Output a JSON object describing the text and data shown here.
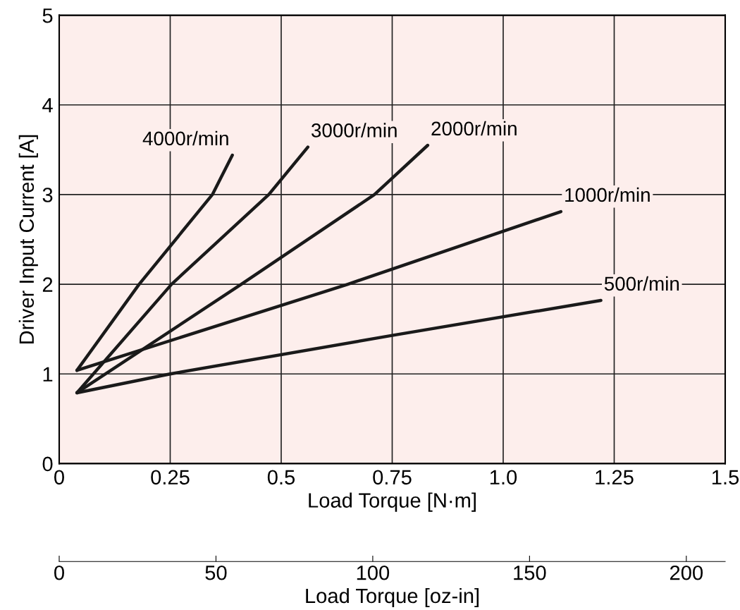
{
  "chart_data": {
    "type": "line",
    "xlabel": "Load Torque [N·m]",
    "ylabel": "Driver Input Current [A]",
    "x2label": "Load Torque [oz-in]",
    "xlim": [
      0,
      1.5
    ],
    "xticks": [
      0,
      0.25,
      0.5,
      0.75,
      {
        "value": 1.0,
        "label": "1.0"
      },
      1.25,
      1.5
    ],
    "ylim": [
      0,
      5
    ],
    "yticks": [
      0,
      1,
      2,
      3,
      4,
      5
    ],
    "x2lim": [
      0,
      212.4
    ],
    "x2ticks": [
      0,
      50,
      100,
      150,
      200
    ],
    "grid": true,
    "legend": false,
    "marker": "none",
    "line_style": "solid",
    "series": [
      {
        "name": "4000r/min",
        "color": "#1a1a1a",
        "x": [
          0.04,
          0.18,
          0.345,
          0.39
        ],
        "values": [
          1.04,
          2,
          3,
          3.44
        ]
      },
      {
        "name": "3000r/min",
        "color": "#1a1a1a",
        "x": [
          0.04,
          0.253,
          0.472,
          0.56
        ],
        "values": [
          0.79,
          2,
          3,
          3.53
        ]
      },
      {
        "name": "2000r/min",
        "color": "#1a1a1a",
        "x": [
          0.04,
          0.41,
          0.71,
          0.83
        ],
        "values": [
          0.79,
          2,
          3,
          3.55
        ]
      },
      {
        "name": "1000r/min",
        "color": "#1a1a1a",
        "x": [
          0.04,
          0.65,
          1.13
        ],
        "values": [
          1.04,
          2,
          2.81
        ]
      },
      {
        "name": "500r/min",
        "color": "#1a1a1a",
        "x": [
          0.04,
          0.25,
          0.75,
          1.22
        ],
        "values": [
          0.79,
          1.0,
          1.43,
          1.82
        ]
      }
    ]
  }
}
